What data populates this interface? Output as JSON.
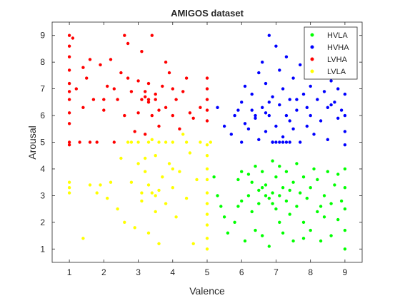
{
  "chart_data": {
    "type": "scatter",
    "title": "AMIGOS dataset",
    "xlabel": "Valence",
    "ylabel": "Arousal",
    "xlim": [
      0.5,
      9.5
    ],
    "ylim": [
      0.5,
      9.5
    ],
    "xticks": [
      1,
      2,
      3,
      4,
      5,
      6,
      7,
      8,
      9
    ],
    "yticks": [
      1,
      2,
      3,
      4,
      5,
      6,
      7,
      8,
      9
    ],
    "grid": false,
    "legend_position": "top-right",
    "series": [
      {
        "name": "HVLA",
        "color": "#00ff00",
        "points": [
          [
            5.2,
            3.7
          ],
          [
            5.3,
            3.0
          ],
          [
            5.4,
            2.6
          ],
          [
            5.5,
            2.2
          ],
          [
            5.6,
            1.6
          ],
          [
            5.8,
            2.0
          ],
          [
            5.9,
            3.6
          ],
          [
            6.0,
            3.9
          ],
          [
            6.0,
            2.8
          ],
          [
            6.1,
            1.3
          ],
          [
            6.2,
            3.0
          ],
          [
            6.3,
            3.5
          ],
          [
            6.3,
            2.4
          ],
          [
            6.4,
            4.1
          ],
          [
            6.5,
            3.2
          ],
          [
            6.5,
            2.7
          ],
          [
            6.6,
            1.5
          ],
          [
            6.6,
            3.9
          ],
          [
            6.7,
            3.4
          ],
          [
            6.8,
            2.9
          ],
          [
            6.8,
            1.1
          ],
          [
            6.9,
            4.3
          ],
          [
            6.9,
            3.1
          ],
          [
            7.0,
            2.5
          ],
          [
            7.0,
            3.7
          ],
          [
            7.1,
            2.0
          ],
          [
            7.1,
            4.1
          ],
          [
            7.2,
            3.3
          ],
          [
            7.2,
            1.6
          ],
          [
            7.3,
            2.8
          ],
          [
            7.3,
            3.9
          ],
          [
            7.4,
            2.3
          ],
          [
            7.5,
            3.5
          ],
          [
            7.5,
            1.3
          ],
          [
            7.6,
            4.2
          ],
          [
            7.6,
            2.6
          ],
          [
            7.7,
            3.1
          ],
          [
            7.8,
            2.0
          ],
          [
            7.8,
            3.7
          ],
          [
            7.9,
            2.9
          ],
          [
            8.0,
            1.7
          ],
          [
            8.0,
            3.3
          ],
          [
            8.1,
            4.0
          ],
          [
            8.2,
            2.4
          ],
          [
            8.2,
            3.6
          ],
          [
            8.3,
            1.3
          ],
          [
            8.4,
            3.0
          ],
          [
            8.4,
            2.2
          ],
          [
            8.5,
            3.9
          ],
          [
            8.6,
            2.7
          ],
          [
            8.6,
            1.5
          ],
          [
            8.7,
            3.4
          ],
          [
            8.8,
            2.1
          ],
          [
            8.8,
            3.8
          ],
          [
            8.9,
            2.8
          ],
          [
            9.0,
            3.3
          ],
          [
            9.0,
            2.5
          ],
          [
            9.0,
            1.7
          ],
          [
            9.0,
            4.0
          ],
          [
            9.0,
            1.0
          ],
          [
            6.7,
            3.0
          ],
          [
            6.9,
            2.7
          ],
          [
            7.1,
            3.0
          ],
          [
            6.6,
            3.3
          ],
          [
            7.4,
            3.2
          ],
          [
            6.2,
            3.8
          ],
          [
            5.9,
            2.6
          ],
          [
            6.4,
            1.7
          ],
          [
            7.8,
            1.4
          ],
          [
            8.3,
            2.6
          ]
        ]
      },
      {
        "name": "HVHA",
        "color": "#0000ff",
        "points": [
          [
            5.3,
            6.3
          ],
          [
            5.5,
            5.6
          ],
          [
            5.7,
            5.3
          ],
          [
            5.8,
            6.0
          ],
          [
            6.0,
            5.0
          ],
          [
            6.0,
            6.5
          ],
          [
            6.1,
            7.1
          ],
          [
            6.2,
            5.5
          ],
          [
            6.3,
            6.8
          ],
          [
            6.4,
            5.9
          ],
          [
            6.5,
            7.6
          ],
          [
            6.5,
            5.1
          ],
          [
            6.6,
            6.3
          ],
          [
            6.6,
            8.0
          ],
          [
            6.7,
            5.4
          ],
          [
            6.7,
            7.2
          ],
          [
            6.8,
            6.0
          ],
          [
            6.8,
            9.0
          ],
          [
            6.9,
            5.0
          ],
          [
            6.9,
            6.7
          ],
          [
            7.0,
            8.6
          ],
          [
            7.0,
            5.6
          ],
          [
            7.1,
            6.4
          ],
          [
            7.1,
            7.7
          ],
          [
            7.2,
            5.2
          ],
          [
            7.2,
            7.0
          ],
          [
            7.3,
            6.0
          ],
          [
            7.3,
            8.2
          ],
          [
            7.4,
            5.0
          ],
          [
            7.4,
            6.6
          ],
          [
            7.5,
            7.4
          ],
          [
            7.5,
            5.5
          ],
          [
            7.6,
            6.2
          ],
          [
            7.7,
            7.9
          ],
          [
            7.7,
            5.0
          ],
          [
            7.8,
            6.8
          ],
          [
            7.9,
            5.6
          ],
          [
            8.0,
            7.1
          ],
          [
            8.0,
            6.0
          ],
          [
            8.1,
            5.3
          ],
          [
            8.2,
            6.6
          ],
          [
            8.2,
            7.6
          ],
          [
            8.3,
            5.8
          ],
          [
            8.4,
            6.9
          ],
          [
            8.5,
            6.3
          ],
          [
            8.5,
            5.1
          ],
          [
            8.6,
            7.3
          ],
          [
            8.7,
            6.5
          ],
          [
            8.8,
            5.9
          ],
          [
            8.8,
            7.0
          ],
          [
            9.0,
            6.0
          ],
          [
            9.0,
            6.8
          ],
          [
            9.0,
            5.4
          ],
          [
            9.0,
            4.9
          ],
          [
            6.9,
            5.0
          ],
          [
            7.0,
            5.0
          ],
          [
            7.1,
            5.0
          ],
          [
            7.2,
            5.0
          ],
          [
            7.3,
            5.0
          ],
          [
            6.4,
            6.0
          ],
          [
            6.1,
            5.7
          ],
          [
            6.3,
            6.2
          ],
          [
            5.9,
            6.2
          ],
          [
            6.7,
            6.1
          ],
          [
            7.6,
            6.6
          ],
          [
            8.6,
            6.4
          ],
          [
            8.9,
            6.2
          ],
          [
            7.9,
            6.3
          ],
          [
            7.4,
            5.8
          ],
          [
            6.8,
            6.5
          ]
        ]
      },
      {
        "name": "LVHA",
        "color": "#ff0000",
        "points": [
          [
            1.0,
            9.0
          ],
          [
            1.0,
            8.6
          ],
          [
            1.0,
            8.2
          ],
          [
            1.0,
            7.7
          ],
          [
            1.0,
            7.2
          ],
          [
            1.0,
            6.9
          ],
          [
            1.0,
            6.6
          ],
          [
            1.0,
            6.1
          ],
          [
            1.0,
            5.7
          ],
          [
            1.0,
            5.0
          ],
          [
            1.0,
            4.9
          ],
          [
            1.1,
            8.9
          ],
          [
            1.2,
            7.0
          ],
          [
            1.3,
            5.0
          ],
          [
            1.4,
            6.3
          ],
          [
            1.5,
            7.4
          ],
          [
            1.6,
            8.1
          ],
          [
            1.7,
            6.6
          ],
          [
            1.8,
            5.0
          ],
          [
            1.9,
            7.9
          ],
          [
            2.0,
            6.2
          ],
          [
            2.1,
            7.1
          ],
          [
            2.2,
            8.1
          ],
          [
            2.3,
            5.0
          ],
          [
            2.4,
            6.6
          ],
          [
            2.5,
            7.6
          ],
          [
            2.6,
            6.0
          ],
          [
            2.6,
            9.0
          ],
          [
            2.7,
            8.7
          ],
          [
            2.8,
            6.9
          ],
          [
            2.9,
            5.4
          ],
          [
            3.0,
            7.3
          ],
          [
            3.0,
            6.1
          ],
          [
            3.1,
            8.4
          ],
          [
            3.2,
            6.7
          ],
          [
            3.2,
            5.3
          ],
          [
            3.3,
            6.5
          ],
          [
            3.3,
            7.2
          ],
          [
            3.4,
            6.0
          ],
          [
            3.4,
            9.0
          ],
          [
            3.5,
            6.8
          ],
          [
            3.6,
            5.6
          ],
          [
            3.7,
            7.1
          ],
          [
            3.8,
            6.3
          ],
          [
            3.9,
            7.6
          ],
          [
            4.0,
            6.0
          ],
          [
            4.1,
            6.6
          ],
          [
            4.2,
            5.5
          ],
          [
            4.3,
            6.9
          ],
          [
            4.4,
            7.4
          ],
          [
            4.5,
            6.1
          ],
          [
            4.6,
            5.9
          ],
          [
            4.8,
            6.3
          ],
          [
            5.0,
            7.0
          ],
          [
            5.0,
            6.6
          ],
          [
            5.0,
            6.2
          ],
          [
            5.0,
            5.8
          ],
          [
            5.0,
            7.4
          ],
          [
            3.1,
            6.6
          ],
          [
            3.3,
            6.6
          ],
          [
            3.5,
            6.6
          ],
          [
            3.2,
            6.9
          ],
          [
            2.0,
            6.6
          ],
          [
            1.6,
            5.0
          ],
          [
            2.7,
            7.4
          ],
          [
            3.8,
            8.0
          ],
          [
            2.3,
            7.0
          ],
          [
            1.4,
            7.8
          ],
          [
            4.0,
            7.0
          ],
          [
            3.6,
            6.2
          ]
        ]
      },
      {
        "name": "LVLA",
        "color": "#ffff00",
        "points": [
          [
            1.0,
            3.5
          ],
          [
            1.0,
            3.3
          ],
          [
            1.0,
            3.1
          ],
          [
            1.4,
            1.4
          ],
          [
            1.6,
            3.4
          ],
          [
            1.8,
            3.1
          ],
          [
            1.9,
            3.4
          ],
          [
            2.1,
            2.9
          ],
          [
            2.2,
            3.5
          ],
          [
            2.4,
            2.5
          ],
          [
            2.5,
            4.4
          ],
          [
            2.6,
            2.0
          ],
          [
            2.7,
            5.0
          ],
          [
            2.8,
            3.5
          ],
          [
            2.9,
            1.8
          ],
          [
            3.0,
            4.2
          ],
          [
            3.0,
            5.0
          ],
          [
            3.1,
            2.8
          ],
          [
            3.2,
            3.9
          ],
          [
            3.3,
            1.6
          ],
          [
            3.3,
            5.0
          ],
          [
            3.4,
            3.1
          ],
          [
            3.5,
            4.5
          ],
          [
            3.5,
            2.4
          ],
          [
            3.6,
            5.0
          ],
          [
            3.6,
            1.2
          ],
          [
            3.7,
            3.7
          ],
          [
            3.8,
            2.7
          ],
          [
            3.9,
            4.2
          ],
          [
            4.0,
            3.3
          ],
          [
            4.0,
            5.0
          ],
          [
            4.1,
            2.2
          ],
          [
            4.2,
            3.9
          ],
          [
            4.3,
            5.3
          ],
          [
            4.4,
            2.9
          ],
          [
            4.5,
            4.6
          ],
          [
            4.6,
            1.2
          ],
          [
            4.7,
            3.6
          ],
          [
            4.8,
            5.0
          ],
          [
            5.0,
            4.9
          ],
          [
            5.0,
            4.5
          ],
          [
            5.0,
            4.0
          ],
          [
            5.0,
            3.6
          ],
          [
            5.0,
            3.1
          ],
          [
            5.0,
            2.7
          ],
          [
            5.0,
            2.3
          ],
          [
            5.0,
            1.9
          ],
          [
            5.0,
            1.4
          ],
          [
            5.0,
            1.0
          ],
          [
            5.1,
            5.0
          ],
          [
            3.1,
            3.1
          ],
          [
            3.3,
            3.4
          ],
          [
            3.5,
            3.0
          ],
          [
            3.2,
            4.4
          ],
          [
            3.8,
            5.0
          ],
          [
            4.4,
            5.0
          ],
          [
            2.8,
            5.0
          ],
          [
            3.4,
            5.1
          ],
          [
            4.0,
            4.0
          ],
          [
            3.6,
            3.2
          ]
        ]
      }
    ]
  }
}
